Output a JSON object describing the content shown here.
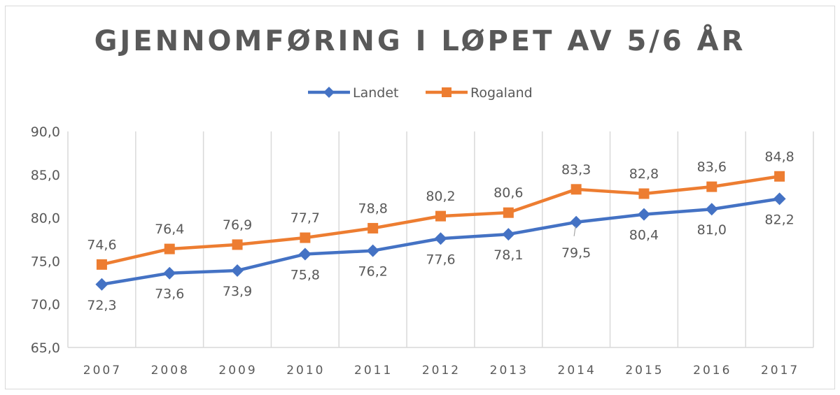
{
  "chart_data": {
    "type": "line",
    "title": "GJENNOMFØRING I LØPET AV 5/6 ÅR",
    "xlabel": "",
    "ylabel": "",
    "categories": [
      "2007",
      "2008",
      "2009",
      "2010",
      "2011",
      "2012",
      "2013",
      "2014",
      "2015",
      "2016",
      "2017"
    ],
    "ylim": [
      65,
      90
    ],
    "yticks": [
      65,
      70,
      75,
      80,
      85,
      90
    ],
    "ytick_labels": [
      "65,0",
      "70,0",
      "75,0",
      "80,0",
      "85,0",
      "90,0"
    ],
    "grid": "vertical",
    "legend_position": "top",
    "series": [
      {
        "name": "Landet",
        "color": "#4472c4",
        "marker": "diamond",
        "label_position": "below",
        "values": [
          72.3,
          73.6,
          73.9,
          75.8,
          76.2,
          77.6,
          78.1,
          79.5,
          80.4,
          81.0,
          82.2
        ],
        "labels": [
          "72,3",
          "73,6",
          "73,9",
          "75,8",
          "76,2",
          "77,6",
          "78,1",
          "79,5",
          "80,4",
          "81,0",
          "82,2"
        ]
      },
      {
        "name": "Rogaland",
        "color": "#ed7d31",
        "marker": "square",
        "label_position": "above",
        "values": [
          74.6,
          76.4,
          76.9,
          77.7,
          78.8,
          80.2,
          80.6,
          83.3,
          82.8,
          83.6,
          84.8
        ],
        "labels": [
          "74,6",
          "76,4",
          "76,9",
          "77,7",
          "78,8",
          "80,2",
          "80,6",
          "83,3",
          "82,8",
          "83,6",
          "84,8"
        ]
      }
    ]
  }
}
